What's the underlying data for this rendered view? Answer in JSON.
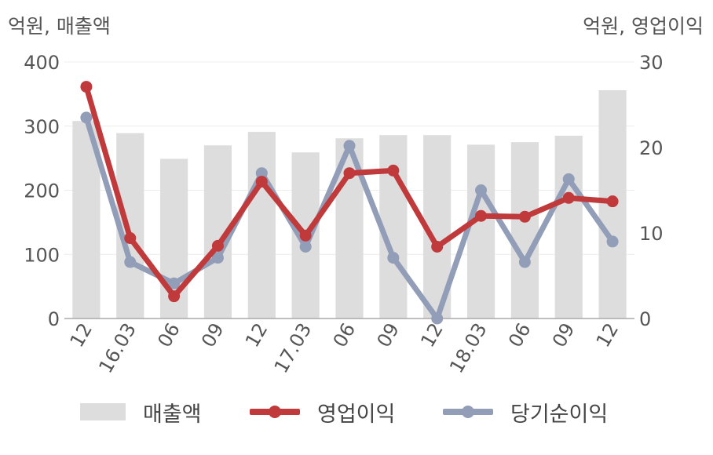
{
  "chart_data": {
    "type": "bar+line",
    "left_axis_title": "억원, 매출액",
    "right_axis_title": "억원, 영업이익",
    "categories": [
      "12",
      "16.03",
      "06",
      "09",
      "12",
      "17.03",
      "06",
      "09",
      "12",
      "18.03",
      "06",
      "09",
      "12"
    ],
    "y_left": {
      "ticks": [
        0,
        100,
        200,
        300,
        400
      ],
      "range": [
        0,
        400
      ]
    },
    "y_right": {
      "ticks": [
        0,
        10,
        20,
        30
      ],
      "range": [
        0,
        30
      ]
    },
    "grid": true,
    "legend_position": "bottom",
    "series": [
      {
        "name": "매출액",
        "kind": "bar",
        "axis": "left",
        "color": "#dddddd",
        "values": [
          308,
          289,
          249,
          270,
          291,
          259,
          281,
          286,
          286,
          271,
          275,
          285,
          356
        ]
      },
      {
        "name": "영업이익",
        "kind": "line",
        "axis": "right",
        "color": "#c0393b",
        "values": [
          27.1,
          9.4,
          2.6,
          8.5,
          16.0,
          9.7,
          17.0,
          17.3,
          8.4,
          12.0,
          11.9,
          14.1,
          13.7
        ]
      },
      {
        "name": "당기순이익",
        "kind": "line",
        "axis": "right",
        "color": "#929db8",
        "values": [
          23.5,
          6.6,
          4.1,
          7.1,
          17.0,
          8.4,
          20.2,
          7.1,
          0.0,
          15.0,
          6.6,
          16.3,
          9.0
        ]
      }
    ]
  }
}
